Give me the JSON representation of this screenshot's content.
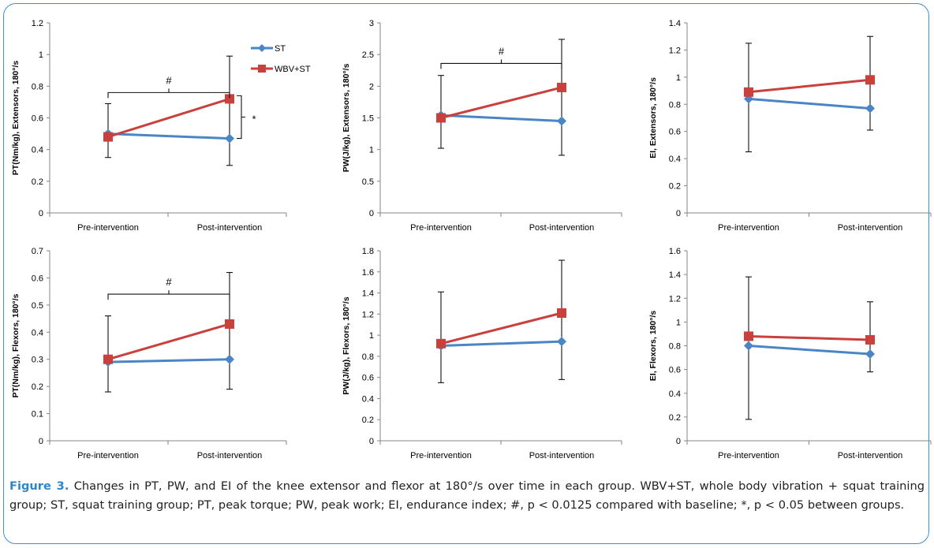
{
  "caption": {
    "label": "Figure 3.",
    "text": " Changes in PT, PW, and EI of the knee extensor and flexor at 180°/s over time in each group. WBV+ST, whole body vibration + squat training group; ST, squat training group; PT, peak torque; PW, peak work; EI, endurance index; #, p < 0.0125 compared with baseline; *, p < 0.05 between groups."
  },
  "legend": {
    "st_label": "ST",
    "wbv_label": "WBV+ST"
  },
  "colors": {
    "st": "#4a86c5",
    "wbv": "#c9403c",
    "frame": "#3f8fcf",
    "caption_label": "#2e86c8"
  },
  "chart_data": [
    {
      "type": "line",
      "ylabel": "PT(Nm/kg), Extensors, 180°/s",
      "categories": [
        "Pre-intervention",
        "Post-intervention"
      ],
      "ylim": [
        0,
        1.2
      ],
      "yticks": [
        "0",
        "0.2",
        "0.4",
        "0.6",
        "0.8",
        "1",
        "1.2"
      ],
      "series": [
        {
          "name": "ST",
          "values": [
            0.5,
            0.47
          ]
        },
        {
          "name": "WBV+ST",
          "values": [
            0.48,
            0.72
          ]
        }
      ],
      "error_bars": [
        [
          0.35,
          0.69
        ],
        [
          0.3,
          0.99
        ]
      ],
      "annotations": {
        "within_group": "#",
        "between_group": "*"
      },
      "legend": "top-right"
    },
    {
      "type": "line",
      "ylabel": "PW(J/kg), Extensors, 180°/s",
      "categories": [
        "Pre-intervention",
        "Post-intervention"
      ],
      "ylim": [
        0,
        3
      ],
      "yticks": [
        "0",
        "0.5",
        "1",
        "1.5",
        "2",
        "2.5",
        "3"
      ],
      "series": [
        {
          "name": "ST",
          "values": [
            1.54,
            1.45
          ]
        },
        {
          "name": "WBV+ST",
          "values": [
            1.5,
            1.98
          ]
        }
      ],
      "error_bars": [
        [
          1.02,
          2.17
        ],
        [
          0.91,
          2.74
        ]
      ],
      "annotations": {
        "within_group": "#"
      }
    },
    {
      "type": "line",
      "ylabel": "EI, Extensors, 180°/s",
      "categories": [
        "Pre-intervention",
        "Post-intervention"
      ],
      "ylim": [
        0,
        1.4
      ],
      "yticks": [
        "0",
        "0.2",
        "0.4",
        "0.6",
        "0.8",
        "1",
        "1.2",
        "1.4"
      ],
      "series": [
        {
          "name": "ST",
          "values": [
            0.84,
            0.77
          ]
        },
        {
          "name": "WBV+ST",
          "values": [
            0.89,
            0.98
          ]
        }
      ],
      "error_bars": [
        [
          0.45,
          1.25
        ],
        [
          0.61,
          1.3
        ]
      ]
    },
    {
      "type": "line",
      "ylabel": "PT(Nm/kg), Flexors, 180°/s",
      "categories": [
        "Pre-intervention",
        "Post-intervention"
      ],
      "ylim": [
        0,
        0.7
      ],
      "yticks": [
        "0",
        "0.1",
        "0.2",
        "0.3",
        "0.4",
        "0.5",
        "0.6",
        "0.7"
      ],
      "series": [
        {
          "name": "ST",
          "values": [
            0.29,
            0.3
          ]
        },
        {
          "name": "WBV+ST",
          "values": [
            0.3,
            0.43
          ]
        }
      ],
      "error_bars": [
        [
          0.18,
          0.46
        ],
        [
          0.19,
          0.62
        ]
      ],
      "annotations": {
        "within_group": "#"
      }
    },
    {
      "type": "line",
      "ylabel": "PW(J/kg), Flexors, 180°/s",
      "categories": [
        "Pre-intervention",
        "Post-intervention"
      ],
      "ylim": [
        0,
        1.8
      ],
      "yticks": [
        "0",
        "0.2",
        "0.4",
        "0.6",
        "0.8",
        "1",
        "1.2",
        "1.4",
        "1.6",
        "1.8"
      ],
      "series": [
        {
          "name": "ST",
          "values": [
            0.9,
            0.94
          ]
        },
        {
          "name": "WBV+ST",
          "values": [
            0.92,
            1.21
          ]
        }
      ],
      "error_bars": [
        [
          0.55,
          1.41
        ],
        [
          0.58,
          1.71
        ]
      ]
    },
    {
      "type": "line",
      "ylabel": "EI, Flexors, 180°/s",
      "categories": [
        "Pre-intervention",
        "Post-intervention"
      ],
      "ylim": [
        0,
        1.6
      ],
      "yticks": [
        "0",
        "0.2",
        "0.4",
        "0.6",
        "0.8",
        "1",
        "1.2",
        "1.4",
        "1.6"
      ],
      "series": [
        {
          "name": "ST",
          "values": [
            0.8,
            0.73
          ]
        },
        {
          "name": "WBV+ST",
          "values": [
            0.88,
            0.85
          ]
        }
      ],
      "error_bars": [
        [
          0.18,
          1.38
        ],
        [
          0.58,
          1.17
        ]
      ]
    }
  ]
}
